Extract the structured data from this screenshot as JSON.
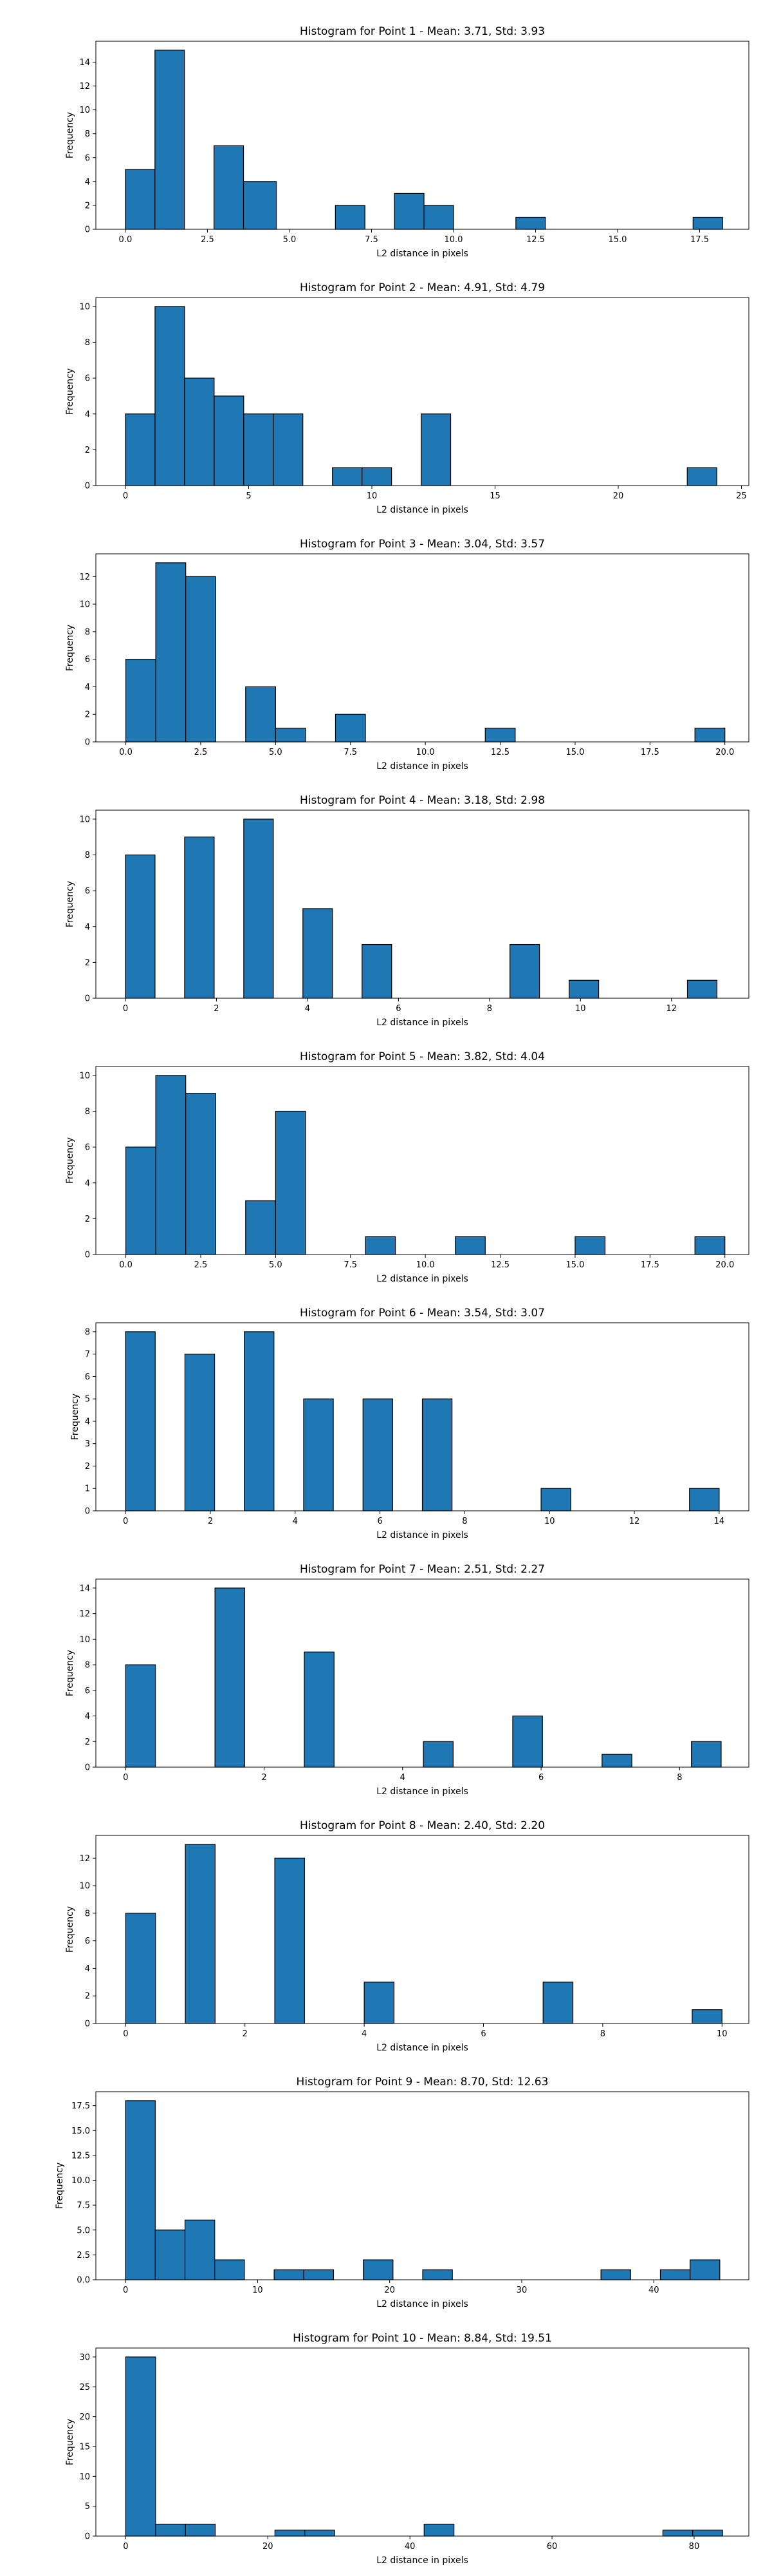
{
  "colors": {
    "bar": "#1f77b4",
    "edge": "#000000"
  },
  "chart_data": [
    {
      "type": "bar",
      "title": "Histogram for Point 1 - Mean: 3.71, Std: 3.93",
      "xlabel": "L2 distance in pixels",
      "ylabel": "Frequency",
      "xlim": [
        -0.9,
        19.0
      ],
      "ylim": [
        0,
        15.75
      ],
      "xticks": [
        0,
        2.5,
        5,
        7.5,
        10,
        12.5,
        15,
        17.5
      ],
      "xtick_labels": [
        "0.0",
        "2.5",
        "5.0",
        "7.5",
        "10.0",
        "12.5",
        "15.0",
        "17.5"
      ],
      "yticks": [
        0,
        2,
        4,
        6,
        8,
        10,
        12,
        14
      ],
      "ytick_labels": [
        "0",
        "2",
        "4",
        "6",
        "8",
        "10",
        "12",
        "14"
      ],
      "bins": [
        {
          "x0": 0.0,
          "x1": 0.9,
          "y": 5
        },
        {
          "x0": 0.9,
          "x1": 1.8,
          "y": 15
        },
        {
          "x0": 2.7,
          "x1": 3.6,
          "y": 7
        },
        {
          "x0": 3.6,
          "x1": 4.6,
          "y": 4
        },
        {
          "x0": 6.4,
          "x1": 7.3,
          "y": 2
        },
        {
          "x0": 8.2,
          "x1": 9.1,
          "y": 3
        },
        {
          "x0": 9.1,
          "x1": 10.0,
          "y": 2
        },
        {
          "x0": 11.9,
          "x1": 12.8,
          "y": 1
        },
        {
          "x0": 17.3,
          "x1": 18.2,
          "y": 1
        }
      ]
    },
    {
      "type": "bar",
      "title": "Histogram for Point 2 - Mean: 4.91, Std: 4.79",
      "xlabel": "L2 distance in pixels",
      "ylabel": "Frequency",
      "xlim": [
        -1.2,
        25.3
      ],
      "ylim": [
        0,
        10.5
      ],
      "xticks": [
        0,
        5,
        10,
        15,
        20,
        25
      ],
      "xtick_labels": [
        "0",
        "5",
        "10",
        "15",
        "20",
        "25"
      ],
      "yticks": [
        0,
        2,
        4,
        6,
        8,
        10
      ],
      "ytick_labels": [
        "0",
        "2",
        "4",
        "6",
        "8",
        "10"
      ],
      "bins": [
        {
          "x0": 0.0,
          "x1": 1.2,
          "y": 4
        },
        {
          "x0": 1.2,
          "x1": 2.4,
          "y": 10
        },
        {
          "x0": 2.4,
          "x1": 3.6,
          "y": 6
        },
        {
          "x0": 3.6,
          "x1": 4.8,
          "y": 5
        },
        {
          "x0": 4.8,
          "x1": 6.0,
          "y": 4
        },
        {
          "x0": 6.0,
          "x1": 7.2,
          "y": 4
        },
        {
          "x0": 8.4,
          "x1": 9.6,
          "y": 1
        },
        {
          "x0": 9.6,
          "x1": 10.8,
          "y": 1
        },
        {
          "x0": 12.0,
          "x1": 13.2,
          "y": 4
        },
        {
          "x0": 22.8,
          "x1": 24.0,
          "y": 1
        }
      ]
    },
    {
      "type": "bar",
      "title": "Histogram for Point 3 - Mean: 3.04, Std: 3.57",
      "xlabel": "L2 distance in pixels",
      "ylabel": "Frequency",
      "xlim": [
        -1.0,
        20.8
      ],
      "ylim": [
        0,
        13.65
      ],
      "xticks": [
        0,
        2.5,
        5,
        7.5,
        10,
        12.5,
        15,
        17.5,
        20
      ],
      "xtick_labels": [
        "0.0",
        "2.5",
        "5.0",
        "7.5",
        "10.0",
        "12.5",
        "15.0",
        "17.5",
        "20.0"
      ],
      "yticks": [
        0,
        2,
        4,
        6,
        8,
        10,
        12
      ],
      "ytick_labels": [
        "0",
        "2",
        "4",
        "6",
        "8",
        "10",
        "12"
      ],
      "bins": [
        {
          "x0": 0.0,
          "x1": 1.0,
          "y": 6
        },
        {
          "x0": 1.0,
          "x1": 2.0,
          "y": 13
        },
        {
          "x0": 2.0,
          "x1": 3.0,
          "y": 12
        },
        {
          "x0": 4.0,
          "x1": 5.0,
          "y": 4
        },
        {
          "x0": 5.0,
          "x1": 6.0,
          "y": 1
        },
        {
          "x0": 7.0,
          "x1": 8.0,
          "y": 2
        },
        {
          "x0": 12.0,
          "x1": 13.0,
          "y": 1
        },
        {
          "x0": 19.0,
          "x1": 20.0,
          "y": 1
        }
      ]
    },
    {
      "type": "bar",
      "title": "Histogram for Point 4 - Mean: 3.18, Std: 2.98",
      "xlabel": "L2 distance in pixels",
      "ylabel": "Frequency",
      "xlim": [
        -0.65,
        13.7
      ],
      "ylim": [
        0,
        10.5
      ],
      "xticks": [
        0,
        2,
        4,
        6,
        8,
        10,
        12
      ],
      "xtick_labels": [
        "0",
        "2",
        "4",
        "6",
        "8",
        "10",
        "12"
      ],
      "yticks": [
        0,
        2,
        4,
        6,
        8,
        10
      ],
      "ytick_labels": [
        "0",
        "2",
        "4",
        "6",
        "8",
        "10"
      ],
      "bins": [
        {
          "x0": 0.0,
          "x1": 0.65,
          "y": 8
        },
        {
          "x0": 1.3,
          "x1": 1.95,
          "y": 9
        },
        {
          "x0": 2.6,
          "x1": 3.25,
          "y": 10
        },
        {
          "x0": 3.9,
          "x1": 4.55,
          "y": 5
        },
        {
          "x0": 5.2,
          "x1": 5.85,
          "y": 3
        },
        {
          "x0": 8.45,
          "x1": 9.1,
          "y": 3
        },
        {
          "x0": 9.75,
          "x1": 10.4,
          "y": 1
        },
        {
          "x0": 12.35,
          "x1": 13.0,
          "y": 1
        }
      ]
    },
    {
      "type": "bar",
      "title": "Histogram for Point 5 - Mean: 3.82, Std: 4.04",
      "xlabel": "L2 distance in pixels",
      "ylabel": "Frequency",
      "xlim": [
        -1.0,
        20.8
      ],
      "ylim": [
        0,
        10.5
      ],
      "xticks": [
        0,
        2.5,
        5,
        7.5,
        10,
        12.5,
        15,
        17.5,
        20
      ],
      "xtick_labels": [
        "0.0",
        "2.5",
        "5.0",
        "7.5",
        "10.0",
        "12.5",
        "15.0",
        "17.5",
        "20.0"
      ],
      "yticks": [
        0,
        2,
        4,
        6,
        8,
        10
      ],
      "ytick_labels": [
        "0",
        "2",
        "4",
        "6",
        "8",
        "10"
      ],
      "bins": [
        {
          "x0": 0.0,
          "x1": 1.0,
          "y": 6
        },
        {
          "x0": 1.0,
          "x1": 2.0,
          "y": 10
        },
        {
          "x0": 2.0,
          "x1": 3.0,
          "y": 9
        },
        {
          "x0": 4.0,
          "x1": 5.0,
          "y": 3
        },
        {
          "x0": 5.0,
          "x1": 6.0,
          "y": 8
        },
        {
          "x0": 8.0,
          "x1": 9.0,
          "y": 1
        },
        {
          "x0": 11.0,
          "x1": 12.0,
          "y": 1
        },
        {
          "x0": 15.0,
          "x1": 16.0,
          "y": 1
        },
        {
          "x0": 19.0,
          "x1": 20.0,
          "y": 1
        }
      ]
    },
    {
      "type": "bar",
      "title": "Histogram for Point 6 - Mean: 3.54, Std: 3.07",
      "xlabel": "L2 distance in pixels",
      "ylabel": "Frequency",
      "xlim": [
        -0.7,
        14.7
      ],
      "ylim": [
        0,
        8.4
      ],
      "xticks": [
        0,
        2,
        4,
        6,
        8,
        10,
        12,
        14
      ],
      "xtick_labels": [
        "0",
        "2",
        "4",
        "6",
        "8",
        "10",
        "12",
        "14"
      ],
      "yticks": [
        0,
        1,
        2,
        3,
        4,
        5,
        6,
        7,
        8
      ],
      "ytick_labels": [
        "0",
        "1",
        "2",
        "3",
        "4",
        "5",
        "6",
        "7",
        "8"
      ],
      "bins": [
        {
          "x0": 0.0,
          "x1": 0.7,
          "y": 8
        },
        {
          "x0": 1.4,
          "x1": 2.1,
          "y": 7
        },
        {
          "x0": 2.8,
          "x1": 3.5,
          "y": 8
        },
        {
          "x0": 4.2,
          "x1": 4.9,
          "y": 5
        },
        {
          "x0": 5.6,
          "x1": 6.3,
          "y": 5
        },
        {
          "x0": 7.0,
          "x1": 7.7,
          "y": 5
        },
        {
          "x0": 9.8,
          "x1": 10.5,
          "y": 1
        },
        {
          "x0": 13.3,
          "x1": 14.0,
          "y": 1
        }
      ]
    },
    {
      "type": "bar",
      "title": "Histogram for Point 7 - Mean: 2.51, Std: 2.27",
      "xlabel": "L2 distance in pixels",
      "ylabel": "Frequency",
      "xlim": [
        -0.43,
        9.0
      ],
      "ylim": [
        0,
        14.7
      ],
      "xticks": [
        0,
        2,
        4,
        6,
        8
      ],
      "xtick_labels": [
        "0",
        "2",
        "4",
        "6",
        "8"
      ],
      "yticks": [
        0,
        2,
        4,
        6,
        8,
        10,
        12,
        14
      ],
      "ytick_labels": [
        "0",
        "2",
        "4",
        "6",
        "8",
        "10",
        "12",
        "14"
      ],
      "bins": [
        {
          "x0": 0.0,
          "x1": 0.43,
          "y": 8
        },
        {
          "x0": 1.29,
          "x1": 1.72,
          "y": 14
        },
        {
          "x0": 2.58,
          "x1": 3.01,
          "y": 9
        },
        {
          "x0": 4.3,
          "x1": 4.73,
          "y": 2
        },
        {
          "x0": 5.59,
          "x1": 6.02,
          "y": 4
        },
        {
          "x0": 6.88,
          "x1": 7.31,
          "y": 1
        },
        {
          "x0": 8.17,
          "x1": 8.6,
          "y": 2
        }
      ]
    },
    {
      "type": "bar",
      "title": "Histogram for Point 8 - Mean: 2.40, Std: 2.20",
      "xlabel": "L2 distance in pixels",
      "ylabel": "Frequency",
      "xlim": [
        -0.5,
        10.45
      ],
      "ylim": [
        0,
        13.65
      ],
      "xticks": [
        0,
        2,
        4,
        6,
        8,
        10
      ],
      "xtick_labels": [
        "0",
        "2",
        "4",
        "6",
        "8",
        "10"
      ],
      "yticks": [
        0,
        2,
        4,
        6,
        8,
        10,
        12
      ],
      "ytick_labels": [
        "0",
        "2",
        "4",
        "6",
        "8",
        "10",
        "12"
      ],
      "bins": [
        {
          "x0": 0.0,
          "x1": 0.5,
          "y": 8
        },
        {
          "x0": 1.0,
          "x1": 1.5,
          "y": 13
        },
        {
          "x0": 2.5,
          "x1": 3.0,
          "y": 12
        },
        {
          "x0": 4.0,
          "x1": 4.5,
          "y": 3
        },
        {
          "x0": 7.0,
          "x1": 7.5,
          "y": 3
        },
        {
          "x0": 9.5,
          "x1": 10.0,
          "y": 1
        }
      ]
    },
    {
      "type": "bar",
      "title": "Histogram for Point 9 - Mean: 8.70, Std: 12.63",
      "xlabel": "L2 distance in pixels",
      "ylabel": "Frequency",
      "xlim": [
        -2.25,
        47.2
      ],
      "ylim": [
        0,
        18.9
      ],
      "xticks": [
        0,
        10,
        20,
        30,
        40
      ],
      "xtick_labels": [
        "0",
        "10",
        "20",
        "30",
        "40"
      ],
      "yticks": [
        0,
        2.5,
        5,
        7.5,
        10,
        12.5,
        15,
        17.5
      ],
      "ytick_labels": [
        "0.0",
        "2.5",
        "5.0",
        "7.5",
        "10.0",
        "12.5",
        "15.0",
        "17.5"
      ],
      "bins": [
        {
          "x0": 0.0,
          "x1": 2.25,
          "y": 18
        },
        {
          "x0": 2.25,
          "x1": 4.5,
          "y": 5
        },
        {
          "x0": 4.5,
          "x1": 6.75,
          "y": 6
        },
        {
          "x0": 6.75,
          "x1": 9.0,
          "y": 2
        },
        {
          "x0": 11.25,
          "x1": 13.5,
          "y": 1
        },
        {
          "x0": 13.5,
          "x1": 15.75,
          "y": 1
        },
        {
          "x0": 18.0,
          "x1": 20.25,
          "y": 2
        },
        {
          "x0": 22.5,
          "x1": 24.75,
          "y": 1
        },
        {
          "x0": 36.0,
          "x1": 38.25,
          "y": 1
        },
        {
          "x0": 40.5,
          "x1": 42.75,
          "y": 1
        },
        {
          "x0": 42.75,
          "x1": 45.0,
          "y": 2
        }
      ]
    },
    {
      "type": "bar",
      "title": "Histogram for Point 10 - Mean: 8.84, Std: 19.51",
      "xlabel": "L2 distance in pixels",
      "ylabel": "Frequency",
      "xlim": [
        -4.2,
        87.7
      ],
      "ylim": [
        0,
        31.5
      ],
      "xticks": [
        0,
        20,
        40,
        60,
        80
      ],
      "xtick_labels": [
        "0",
        "20",
        "40",
        "60",
        "80"
      ],
      "yticks": [
        0,
        5,
        10,
        15,
        20,
        25,
        30
      ],
      "ytick_labels": [
        "0",
        "5",
        "10",
        "15",
        "20",
        "25",
        "30"
      ],
      "bins": [
        {
          "x0": 0.0,
          "x1": 4.2,
          "y": 30
        },
        {
          "x0": 4.2,
          "x1": 8.4,
          "y": 2
        },
        {
          "x0": 8.4,
          "x1": 12.6,
          "y": 2
        },
        {
          "x0": 21.0,
          "x1": 25.2,
          "y": 1
        },
        {
          "x0": 25.2,
          "x1": 29.4,
          "y": 1
        },
        {
          "x0": 42.0,
          "x1": 46.2,
          "y": 2
        },
        {
          "x0": 75.6,
          "x1": 79.8,
          "y": 1
        },
        {
          "x0": 79.8,
          "x1": 84.0,
          "y": 1
        }
      ]
    }
  ]
}
